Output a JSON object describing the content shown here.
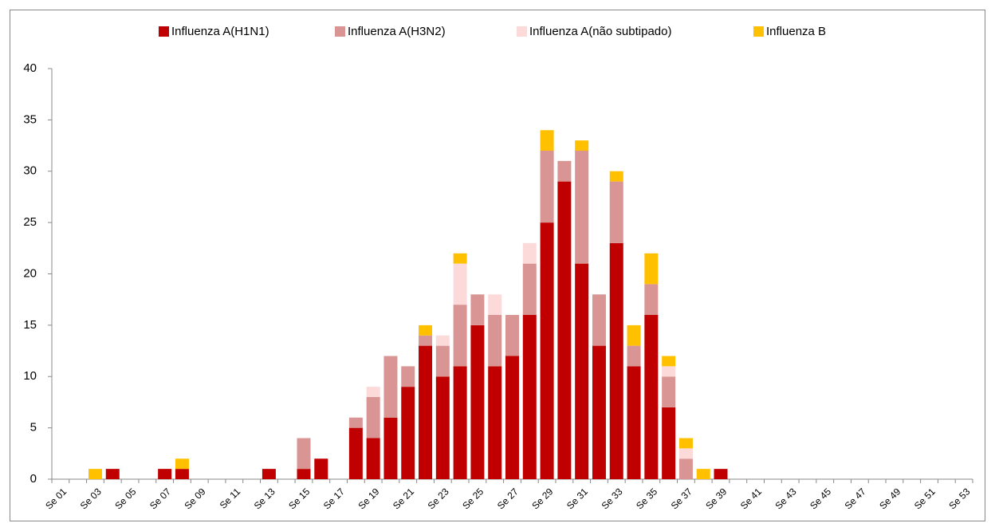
{
  "chart_data": {
    "type": "stacked-bar",
    "categories": [
      "Se 01",
      null,
      "Se 03",
      null,
      "Se 05",
      null,
      "Se 07",
      null,
      "Se 09",
      null,
      "Se 11",
      null,
      "Se 13",
      null,
      "Se 15",
      null,
      "Se 17",
      null,
      "Se 19",
      null,
      "Se 21",
      null,
      "Se 23",
      null,
      "Se 25",
      null,
      "Se 27",
      null,
      "Se 29",
      null,
      "Se 31",
      null,
      "Se 33",
      null,
      "Se 35",
      null,
      "Se 37",
      null,
      "Se 39",
      null,
      "Se 41",
      null,
      "Se 43",
      null,
      "Se 45",
      null,
      "Se 47",
      null,
      "Se 49",
      null,
      "Se 51",
      null,
      "Se 53"
    ],
    "series": [
      {
        "name": "Influenza A(H1N1)",
        "color": "#c00000",
        "values": [
          0,
          0,
          0,
          1,
          0,
          0,
          1,
          1,
          0,
          0,
          0,
          0,
          1,
          0,
          1,
          2,
          0,
          5,
          4,
          6,
          9,
          13,
          10,
          11,
          15,
          11,
          12,
          16,
          25,
          29,
          21,
          13,
          23,
          11,
          16,
          7,
          0,
          0,
          1,
          0,
          0,
          0,
          0,
          0,
          0,
          0,
          0,
          0,
          0,
          0,
          0,
          0,
          0
        ]
      },
      {
        "name": "Influenza A(H3N2)",
        "color": "#d99594",
        "values": [
          0,
          0,
          0,
          0,
          0,
          0,
          0,
          0,
          0,
          0,
          0,
          0,
          0,
          0,
          3,
          0,
          0,
          1,
          4,
          6,
          2,
          1,
          3,
          6,
          3,
          5,
          4,
          5,
          7,
          2,
          11,
          5,
          6,
          2,
          3,
          3,
          2,
          0,
          0,
          0,
          0,
          0,
          0,
          0,
          0,
          0,
          0,
          0,
          0,
          0,
          0,
          0,
          0
        ]
      },
      {
        "name": "Influenza A(não subtipado)",
        "color": "#fddada",
        "values": [
          0,
          0,
          0,
          0,
          0,
          0,
          0,
          0,
          0,
          0,
          0,
          0,
          0,
          0,
          0,
          0,
          0,
          0,
          1,
          0,
          0,
          0,
          1,
          4,
          0,
          2,
          0,
          2,
          0,
          0,
          0,
          0,
          0,
          0,
          0,
          1,
          1,
          0,
          0,
          0,
          0,
          0,
          0,
          0,
          0,
          0,
          0,
          0,
          0,
          0,
          0,
          0,
          0
        ]
      },
      {
        "name": "Influenza B",
        "color": "#ffc000",
        "values": [
          0,
          0,
          1,
          0,
          0,
          0,
          0,
          1,
          0,
          0,
          0,
          0,
          0,
          0,
          0,
          0,
          0,
          0,
          0,
          0,
          0,
          1,
          0,
          1,
          0,
          0,
          0,
          0,
          2,
          0,
          1,
          0,
          1,
          2,
          3,
          1,
          1,
          1,
          0,
          0,
          0,
          0,
          0,
          0,
          0,
          0,
          0,
          0,
          0,
          0,
          0,
          0,
          0
        ]
      }
    ],
    "ylim": [
      0,
      40
    ],
    "yticks": [
      0,
      5,
      10,
      15,
      20,
      25,
      30,
      35,
      40
    ],
    "grid": false,
    "legend": "top"
  }
}
